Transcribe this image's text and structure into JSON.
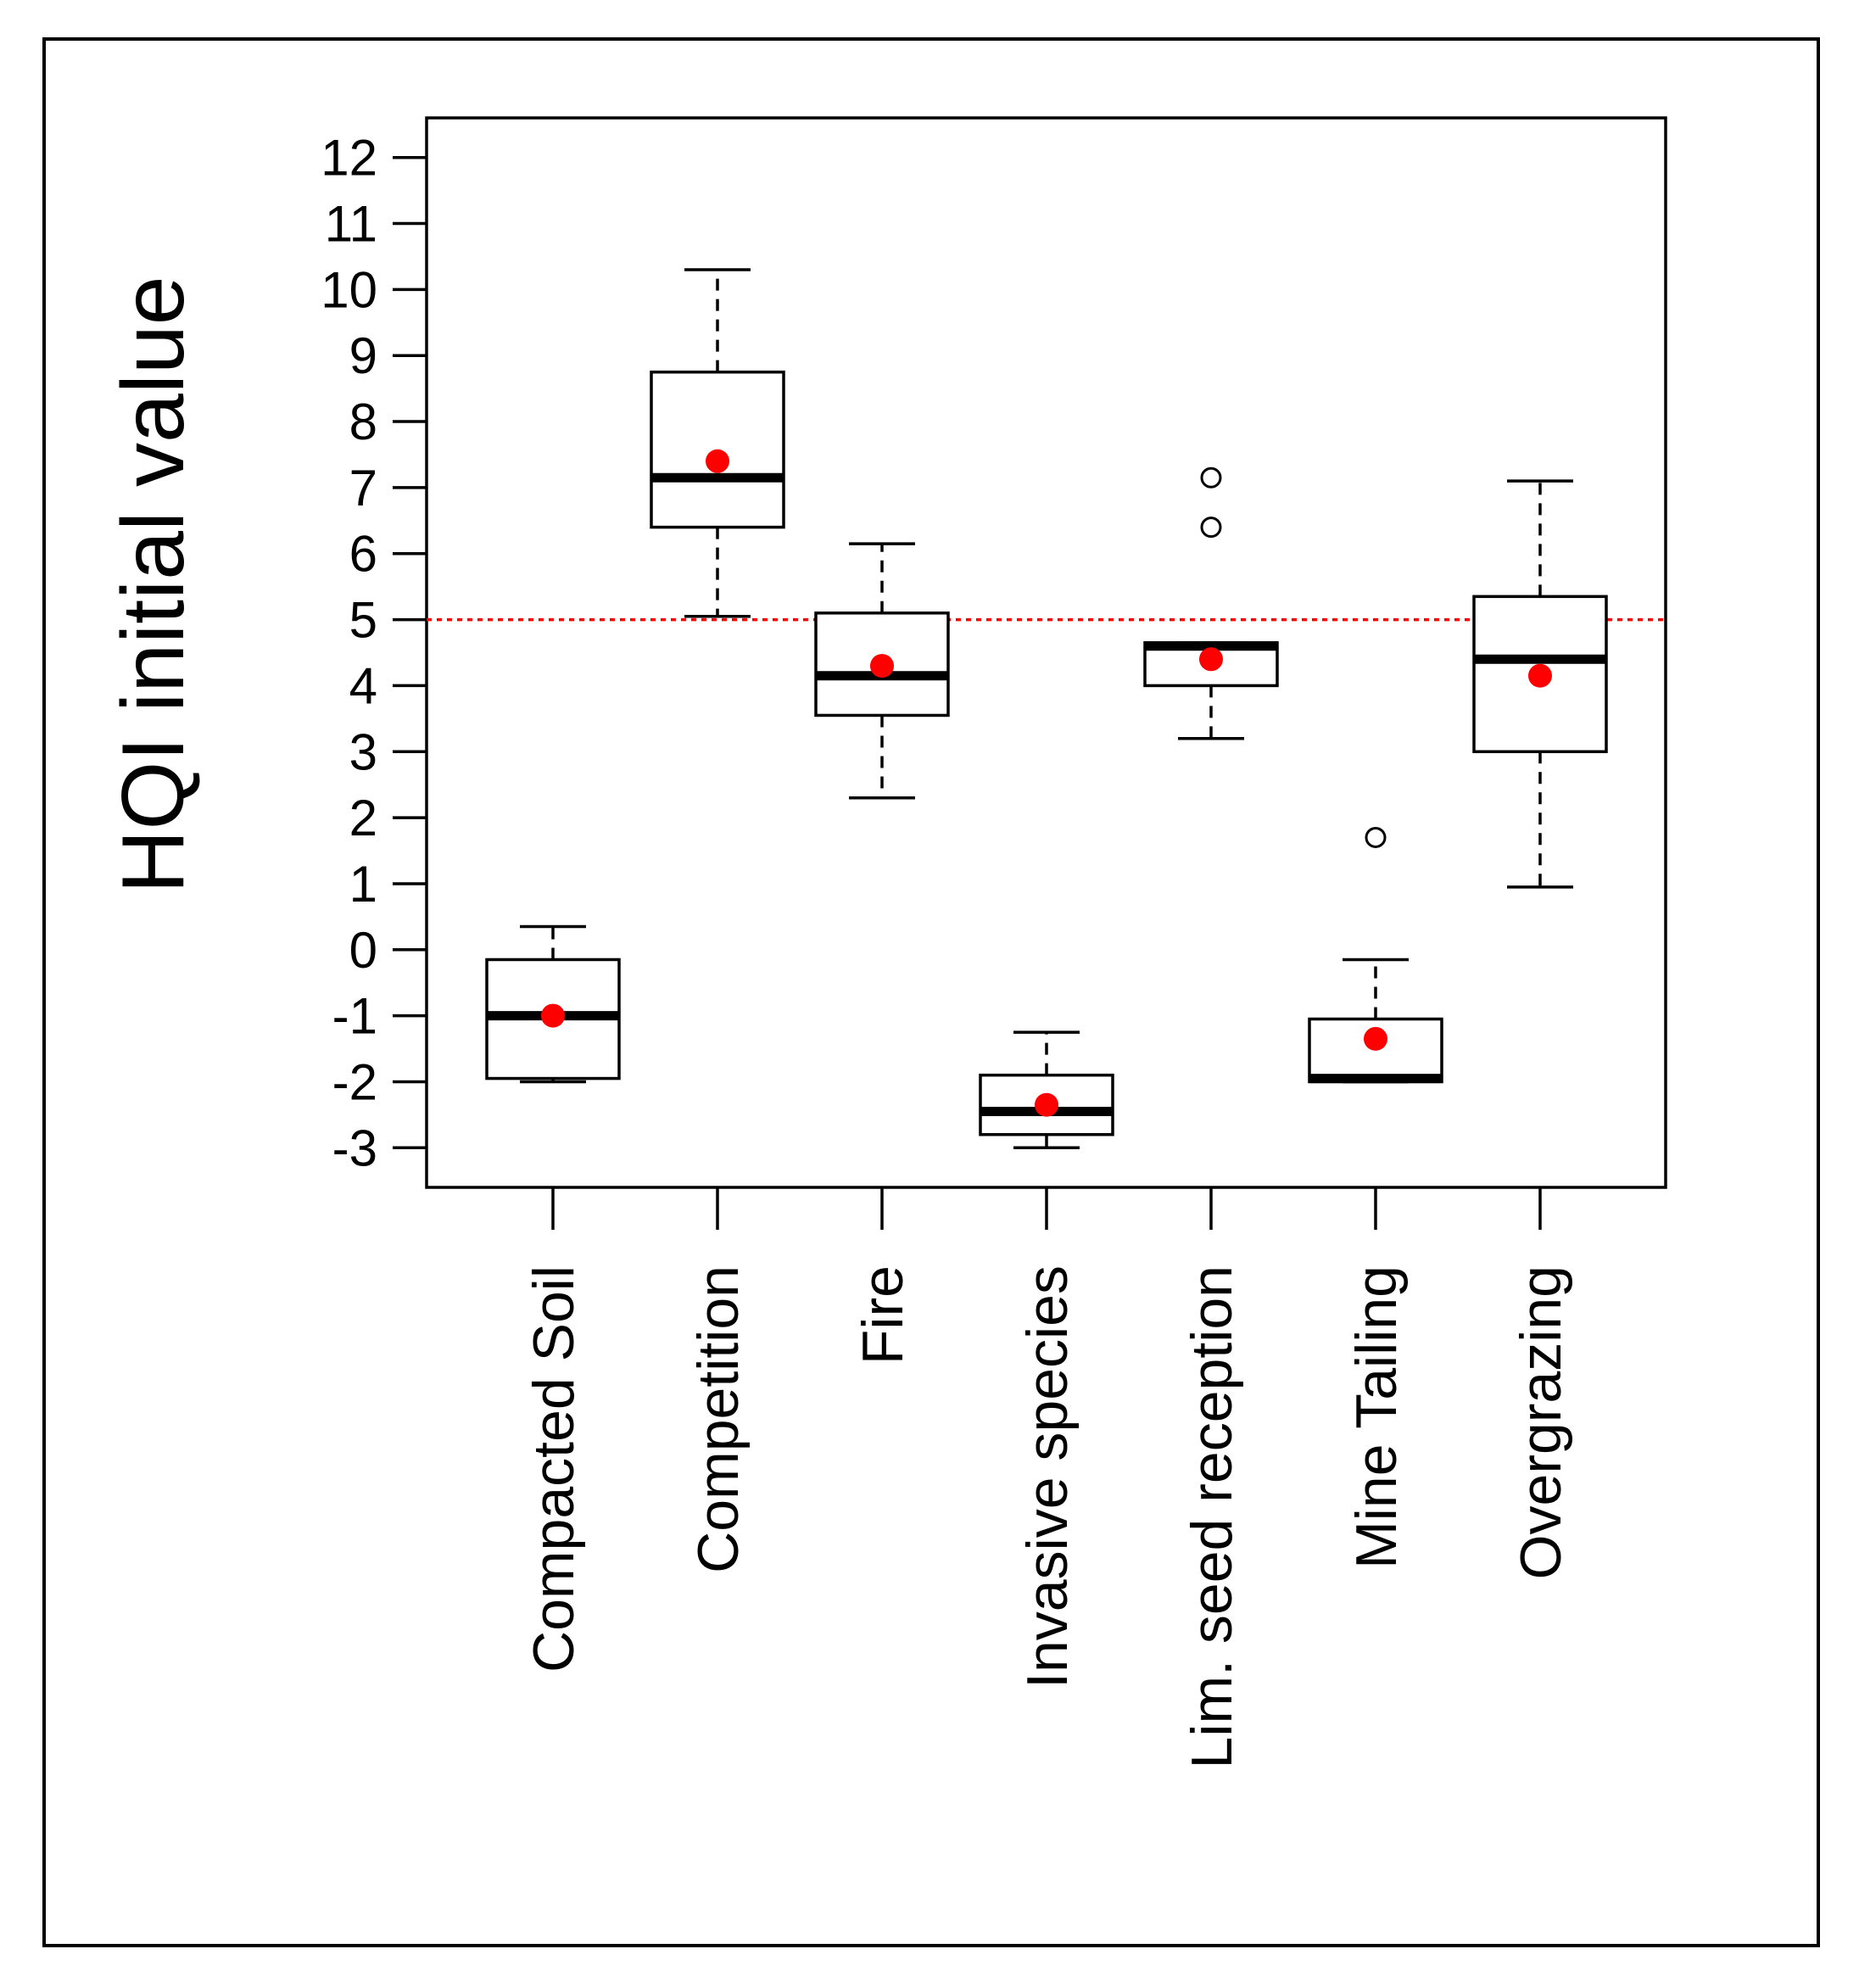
{
  "chart_data": {
    "type": "boxplot",
    "title": "",
    "xlabel": "",
    "ylabel": "HQI initial value",
    "ylim": [
      -3.6,
      12.6
    ],
    "yticks": [
      12,
      11,
      10,
      9,
      8,
      7,
      6,
      5,
      4,
      3,
      2,
      1,
      0,
      -1,
      -2,
      -3
    ],
    "reference_line": {
      "y": 5,
      "color": "#ff0000",
      "style": "dotted"
    },
    "mean_marker_color": "#ff0000",
    "categories": [
      "Compacted Soil",
      "Competition",
      "Fire",
      "Invasive species",
      "Lim. seed reception",
      "Mine Tailing",
      "Overgrazing"
    ],
    "boxes": [
      {
        "category": "Compacted Soil",
        "whisker_low": -2.0,
        "q1": -1.95,
        "median": -1.0,
        "q3": -0.15,
        "whisker_high": 0.35,
        "mean": -1.0,
        "outliers": []
      },
      {
        "category": "Competition",
        "whisker_low": 5.05,
        "q1": 6.4,
        "median": 7.15,
        "q3": 8.75,
        "whisker_high": 10.3,
        "mean": 7.4,
        "outliers": []
      },
      {
        "category": "Fire",
        "whisker_low": 2.3,
        "q1": 3.55,
        "median": 4.15,
        "q3": 5.1,
        "whisker_high": 6.15,
        "mean": 4.3,
        "outliers": []
      },
      {
        "category": "Invasive species",
        "whisker_low": -3.0,
        "q1": -2.8,
        "median": -2.45,
        "q3": -1.9,
        "whisker_high": -1.25,
        "mean": -2.35,
        "outliers": []
      },
      {
        "category": "Lim. seed reception",
        "whisker_low": 3.2,
        "q1": 4.0,
        "median": 4.6,
        "q3": 4.65,
        "whisker_high": 4.65,
        "mean": 4.4,
        "outliers": [
          6.4,
          7.15
        ]
      },
      {
        "category": "Mine Tailing",
        "whisker_low": -2.0,
        "q1": -2.0,
        "median": -1.95,
        "q3": -1.05,
        "whisker_high": -0.15,
        "mean": -1.35,
        "outliers": [
          1.7
        ]
      },
      {
        "category": "Overgrazing",
        "whisker_low": 0.95,
        "q1": 3.0,
        "median": 4.4,
        "q3": 5.35,
        "whisker_high": 7.1,
        "mean": 4.15,
        "outliers": []
      }
    ]
  }
}
